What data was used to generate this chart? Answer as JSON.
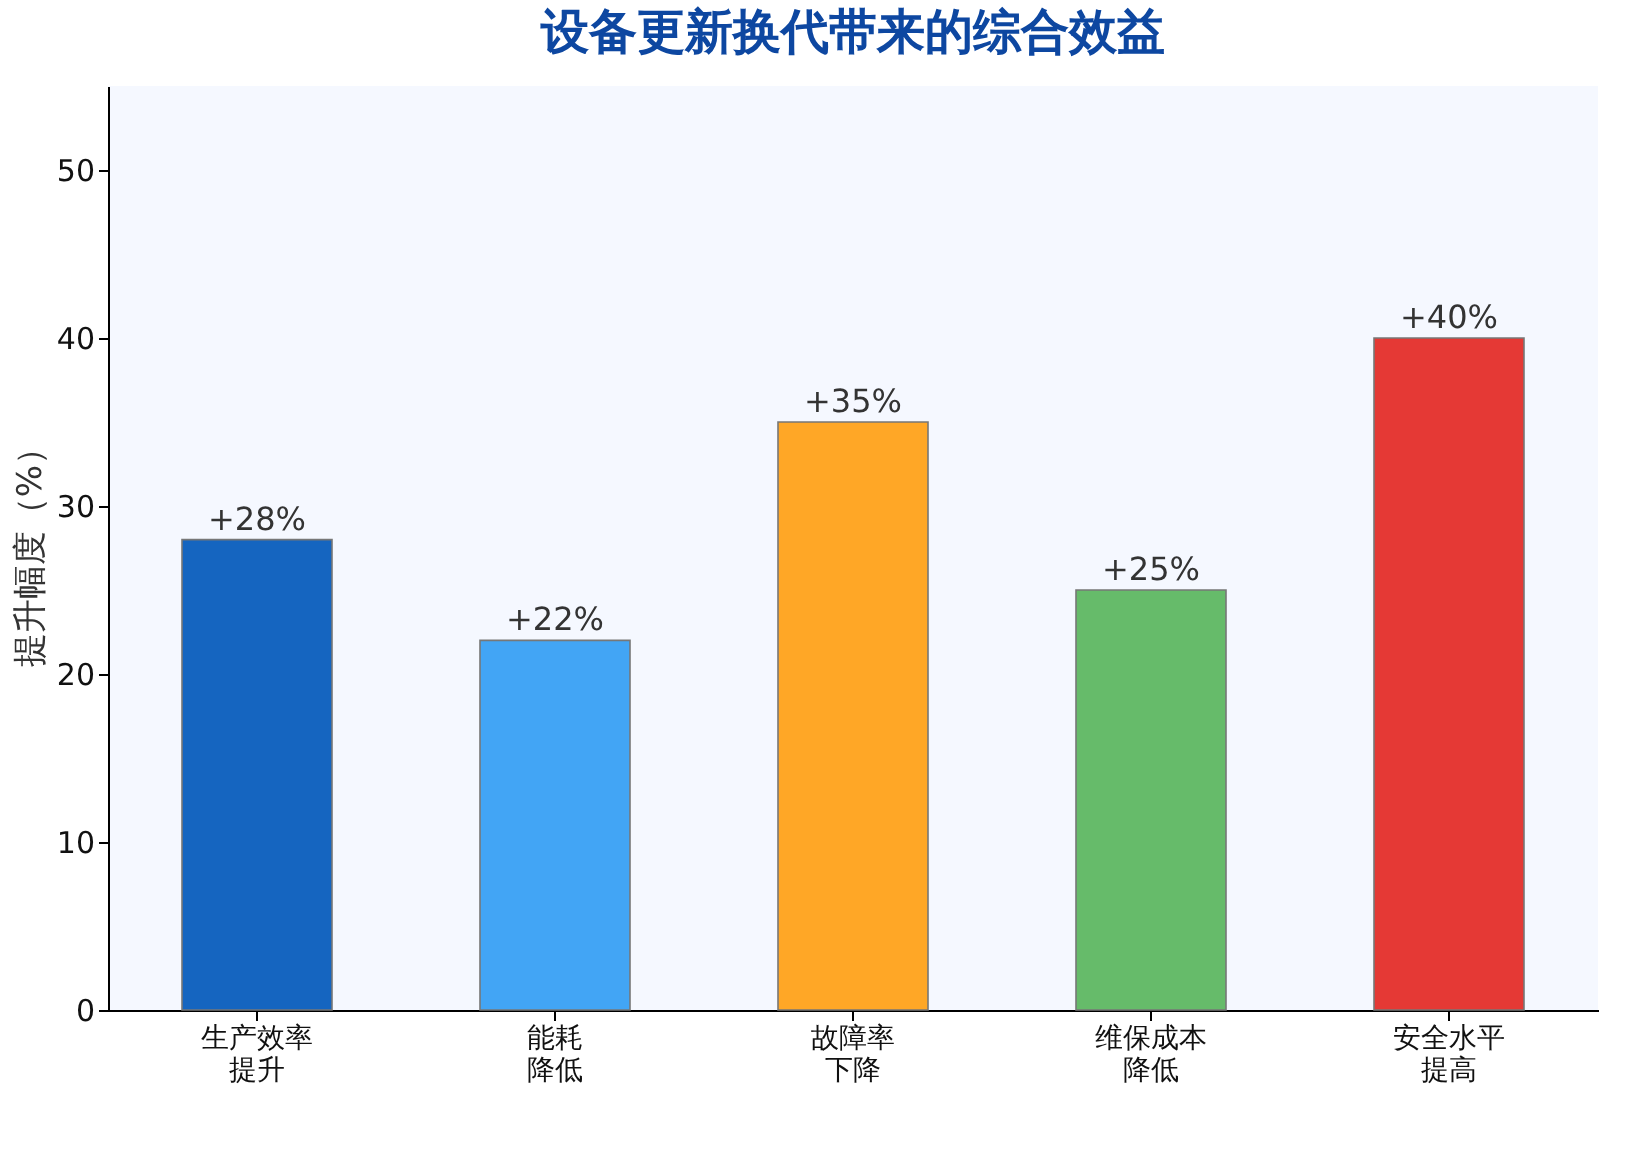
{
  "chart_data": {
    "type": "bar",
    "title": "设备更新换代带来的综合效益",
    "ylabel": "提升幅度（%）",
    "categories": [
      "生产效率提升",
      "能耗降低",
      "故障率下降",
      "维保成本降低",
      "安全水平提高"
    ],
    "values": [
      28,
      22,
      35,
      25,
      40
    ],
    "colors": [
      "#1565c0",
      "#42a5f5",
      "#ffa726",
      "#66bb6a",
      "#e53935"
    ],
    "value_labels": [
      "+28%",
      "+22%",
      "+35%",
      "+25%",
      "+40%"
    ],
    "ylim": [
      0,
      55
    ],
    "yticks": [
      0,
      10,
      20,
      30,
      40,
      50
    ],
    "grid": false
  }
}
